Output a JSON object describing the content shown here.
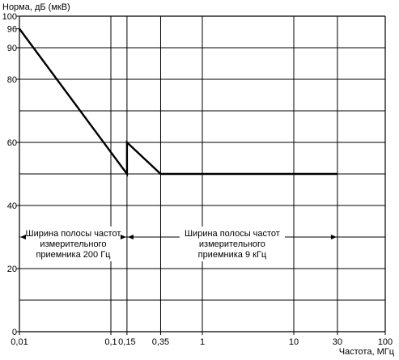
{
  "chart_data": {
    "type": "line",
    "ylabel": "Норма, дБ (мкВ)",
    "xlabel": "Частота, МГц",
    "x_scale": "log",
    "xlim": [
      0.01,
      100
    ],
    "ylim": [
      0,
      100
    ],
    "grid": true,
    "y_ticks": [
      0,
      20,
      40,
      60,
      80,
      90,
      96,
      100
    ],
    "y_tick_labels": [
      "0",
      "20",
      "40",
      "60",
      "80",
      "90",
      "96",
      "100"
    ],
    "y_grid": [
      0,
      10,
      20,
      30,
      40,
      50,
      60,
      70,
      80,
      90,
      100
    ],
    "x_ticks": [
      0.01,
      0.1,
      0.15,
      0.35,
      1,
      10,
      30,
      100
    ],
    "x_tick_labels": [
      "0,01",
      "0,1",
      "0,15",
      "0,35",
      "1",
      "10",
      "30",
      "100"
    ],
    "series": [
      {
        "points": [
          [
            0.01,
            96
          ],
          [
            0.15,
            50
          ],
          [
            0.15,
            60
          ],
          [
            0.35,
            50
          ],
          [
            30,
            50
          ]
        ]
      }
    ],
    "annotations": [
      {
        "lines": [
          "Ширина полосы частот",
          "измерительного",
          "приемника 200 Гц"
        ],
        "x_range": [
          0.01,
          0.15
        ],
        "arrow_y": 30
      },
      {
        "lines": [
          "Ширина полосы частот",
          "измерительного",
          "приемника 9 кГц"
        ],
        "x_range": [
          0.15,
          30
        ],
        "arrow_y": 30
      }
    ]
  }
}
